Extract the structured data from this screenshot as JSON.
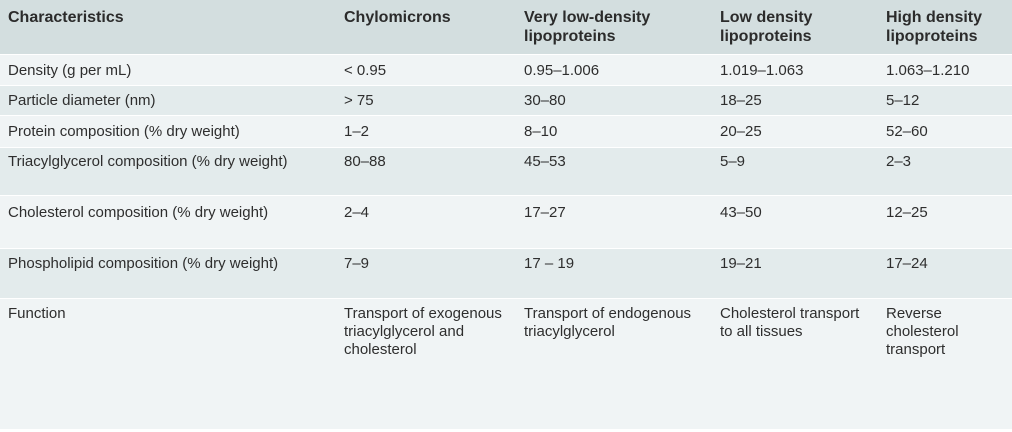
{
  "table": {
    "headers": [
      "Characteristics",
      "Chylomicrons",
      "Very low-density lipoproteins",
      "Low density lipoproteins",
      "High density lipoproteins"
    ],
    "rows": [
      [
        "Density (g per mL)",
        "< 0.95",
        "0.95–1.006",
        "1.019–1.063",
        "1.063–1.210"
      ],
      [
        "Particle diameter (nm)",
        "> 75",
        "30–80",
        "18–25",
        "5–12"
      ],
      [
        "Protein composition (% dry weight)",
        "1–2",
        "8–10",
        "20–25",
        "52–60"
      ],
      [
        "Triacylglycerol composition (% dry weight)",
        "80–88",
        "45–53",
        "5–9",
        "2–3"
      ],
      [
        "Cholesterol composition (% dry weight)",
        "2–4",
        "17–27",
        "43–50",
        "12–25"
      ],
      [
        "Phospholipid composition (% dry weight)",
        "7–9",
        "17 – 19",
        "19–21",
        "17–24"
      ],
      [
        "Function",
        "Transport of exogenous triacylglycerol and cholesterol",
        "Transport of endogenous triacylglycerol",
        "Cholesterol transport to all tissues",
        "Reverse cholesterol transport"
      ]
    ]
  },
  "colors": {
    "header_bg": "#d3dedf",
    "row_shade": "#e3ebec",
    "row_light": "#f0f4f5",
    "text": "#2e2e2e"
  }
}
